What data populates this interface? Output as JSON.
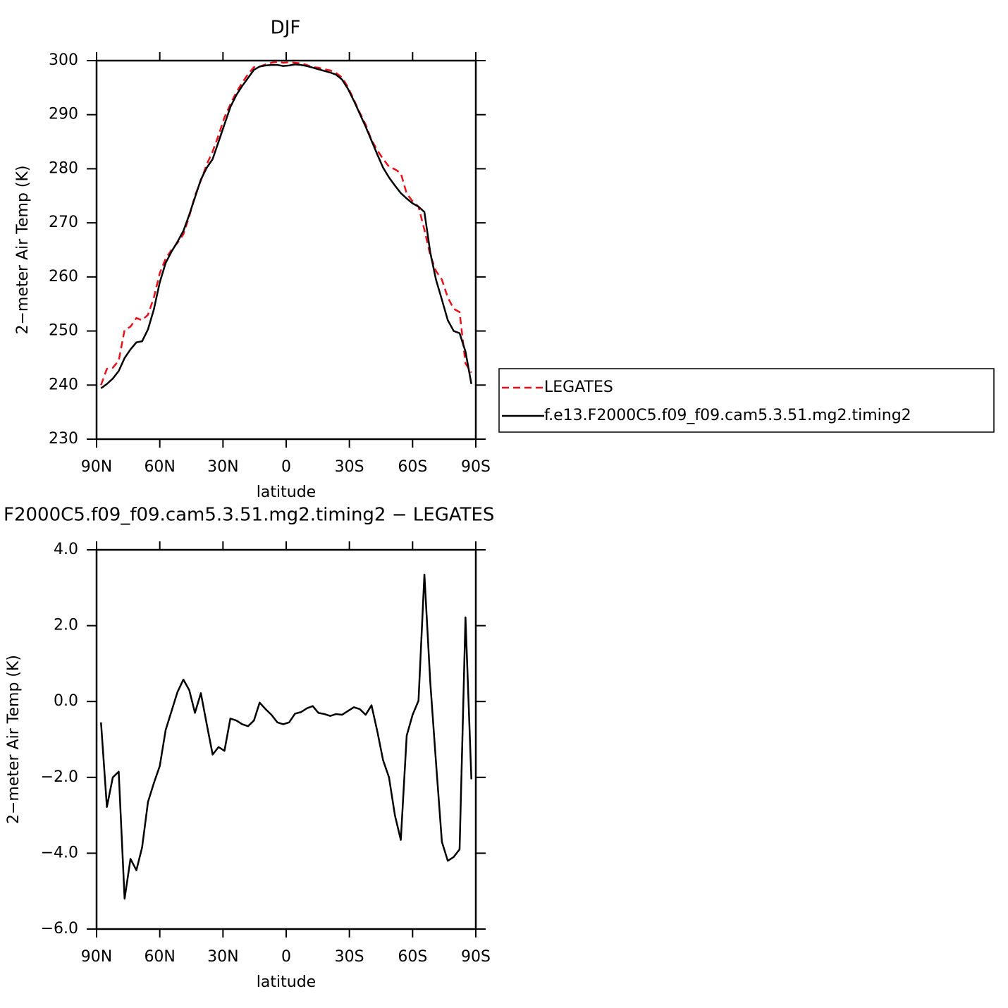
{
  "chart_data": [
    {
      "type": "line",
      "title": "DJF",
      "xlabel": "latitude",
      "ylabel": "2−meter Air Temp (K)",
      "x": [
        87.9,
        85.1,
        82.3,
        79.5,
        76.7,
        73.9,
        71.1,
        68.4,
        65.6,
        62.8,
        60.0,
        57.2,
        54.4,
        51.6,
        48.8,
        46.0,
        43.3,
        40.5,
        37.7,
        34.9,
        32.1,
        29.3,
        26.5,
        23.7,
        20.9,
        18.1,
        15.3,
        12.6,
        9.8,
        7.0,
        4.2,
        1.4,
        -1.4,
        -4.2,
        -7.0,
        -9.8,
        -12.6,
        -15.3,
        -18.1,
        -20.9,
        -23.7,
        -26.5,
        -29.3,
        -32.1,
        -34.9,
        -37.7,
        -40.5,
        -43.3,
        -46.0,
        -48.8,
        -51.6,
        -54.4,
        -57.2,
        -60.0,
        -62.8,
        -65.6,
        -68.4,
        -71.1,
        -73.9,
        -76.7,
        -79.5,
        -82.3,
        -85.1,
        -87.9
      ],
      "series": [
        {
          "name": "LEGATES",
          "color": "#e8101a",
          "dashed": true,
          "values": [
            240.0,
            243.0,
            243.2,
            244.5,
            250.2,
            250.8,
            252.4,
            252.0,
            253.0,
            256.2,
            260.7,
            263.4,
            265.0,
            266.3,
            267.9,
            271.2,
            275.0,
            277.8,
            280.8,
            283.2,
            286.2,
            289.5,
            291.9,
            294.1,
            295.9,
            297.5,
            298.8,
            298.9,
            299.3,
            299.6,
            299.8,
            299.6,
            299.7,
            299.6,
            299.5,
            299.2,
            298.8,
            298.7,
            298.4,
            298.2,
            297.7,
            296.9,
            295.1,
            292.8,
            290.4,
            288.2,
            285.3,
            283.4,
            281.8,
            280.4,
            279.9,
            279.2,
            275.4,
            274.0,
            273.0,
            268.7,
            264.0,
            261.1,
            259.5,
            256.2,
            254.1,
            253.5,
            244.0,
            242.3
          ]
        },
        {
          "name": "f.e13.F2000C5.f09_f09.cam5.3.51.mg2.timing2",
          "color": "#000000",
          "dashed": false,
          "values": [
            239.4,
            240.2,
            241.2,
            242.6,
            245.0,
            246.6,
            247.9,
            248.1,
            250.3,
            254.0,
            259.0,
            262.6,
            264.7,
            266.5,
            268.5,
            271.5,
            274.7,
            278.0,
            280.2,
            281.8,
            285.0,
            288.2,
            291.4,
            293.6,
            295.3,
            296.8,
            298.3,
            298.9,
            299.1,
            299.2,
            299.2,
            299.0,
            299.1,
            299.3,
            299.2,
            299.0,
            298.7,
            298.4,
            298.1,
            297.8,
            297.4,
            296.5,
            294.8,
            292.6,
            290.2,
            287.8,
            285.2,
            282.6,
            280.2,
            278.4,
            276.9,
            275.5,
            274.5,
            273.6,
            273.0,
            272.0,
            264.5,
            259.5,
            255.8,
            252.0,
            250.0,
            249.6,
            246.2,
            240.2
          ]
        }
      ],
      "xlim": [
        90,
        -90
      ],
      "xticks": [
        {
          "value": 90,
          "label": "90N"
        },
        {
          "value": 60,
          "label": "60N"
        },
        {
          "value": 30,
          "label": "30N"
        },
        0,
        {
          "value": -30,
          "label": "30S"
        },
        {
          "value": -60,
          "label": "60S"
        },
        {
          "value": -90,
          "label": "90S"
        }
      ],
      "ylim": [
        230,
        300
      ],
      "yticks": [
        230,
        240,
        250,
        260,
        270,
        280,
        290,
        300
      ],
      "legend": "right"
    },
    {
      "type": "line",
      "title": "F2000C5.f09_f09.cam5.3.51.mg2.timing2 − LEGATES",
      "xlabel": "latitude",
      "ylabel": "2−meter Air Temp (K)",
      "x": [
        87.9,
        85.1,
        82.3,
        79.5,
        76.7,
        73.9,
        71.1,
        68.4,
        65.6,
        62.8,
        60.0,
        57.2,
        54.4,
        51.6,
        48.8,
        46.0,
        43.3,
        40.5,
        37.7,
        34.9,
        32.1,
        29.3,
        26.5,
        23.7,
        20.9,
        18.1,
        15.3,
        12.6,
        9.8,
        7.0,
        4.2,
        1.4,
        -1.4,
        -4.2,
        -7.0,
        -9.8,
        -12.6,
        -15.3,
        -18.1,
        -20.9,
        -23.7,
        -26.5,
        -29.3,
        -32.1,
        -34.9,
        -37.7,
        -40.5,
        -43.3,
        -46.0,
        -48.8,
        -51.6,
        -54.4,
        -57.2,
        -60.0,
        -62.8,
        -65.6,
        -68.4,
        -71.1,
        -73.9,
        -76.7,
        -79.5,
        -82.3,
        -85.1,
        -87.9
      ],
      "series": [
        {
          "color": "#000000",
          "dashed": false,
          "values": [
            -0.55,
            -2.78,
            -2.0,
            -1.85,
            -5.2,
            -4.15,
            -4.45,
            -3.85,
            -2.65,
            -2.15,
            -1.7,
            -0.75,
            -0.25,
            0.25,
            0.58,
            0.3,
            -0.3,
            0.22,
            -0.6,
            -1.4,
            -1.2,
            -1.3,
            -0.45,
            -0.5,
            -0.6,
            -0.65,
            -0.5,
            -0.03,
            -0.2,
            -0.35,
            -0.55,
            -0.6,
            -0.55,
            -0.32,
            -0.28,
            -0.18,
            -0.12,
            -0.3,
            -0.33,
            -0.38,
            -0.33,
            -0.35,
            -0.25,
            -0.15,
            -0.2,
            -0.35,
            -0.1,
            -0.8,
            -1.55,
            -2.0,
            -3.0,
            -3.65,
            -0.9,
            -0.35,
            0.02,
            3.35,
            0.5,
            -1.6,
            -3.7,
            -4.2,
            -4.1,
            -3.9,
            2.22,
            -2.05
          ]
        }
      ],
      "xlim": [
        90,
        -90
      ],
      "xticks": [
        {
          "value": 90,
          "label": "90N"
        },
        {
          "value": 60,
          "label": "60N"
        },
        {
          "value": 30,
          "label": "30N"
        },
        0,
        {
          "value": -30,
          "label": "30S"
        },
        {
          "value": -60,
          "label": "60S"
        },
        {
          "value": -90,
          "label": "90S"
        }
      ],
      "ylim": [
        -6,
        4
      ],
      "yticks": [
        {
          "value": -6,
          "label": "−6.0"
        },
        {
          "value": -4,
          "label": "−4.0"
        },
        {
          "value": -2,
          "label": "−2.0"
        },
        {
          "value": 0,
          "label": "0.0"
        },
        {
          "value": 2,
          "label": "2.0"
        },
        {
          "value": 4,
          "label": "4.0"
        }
      ]
    }
  ]
}
